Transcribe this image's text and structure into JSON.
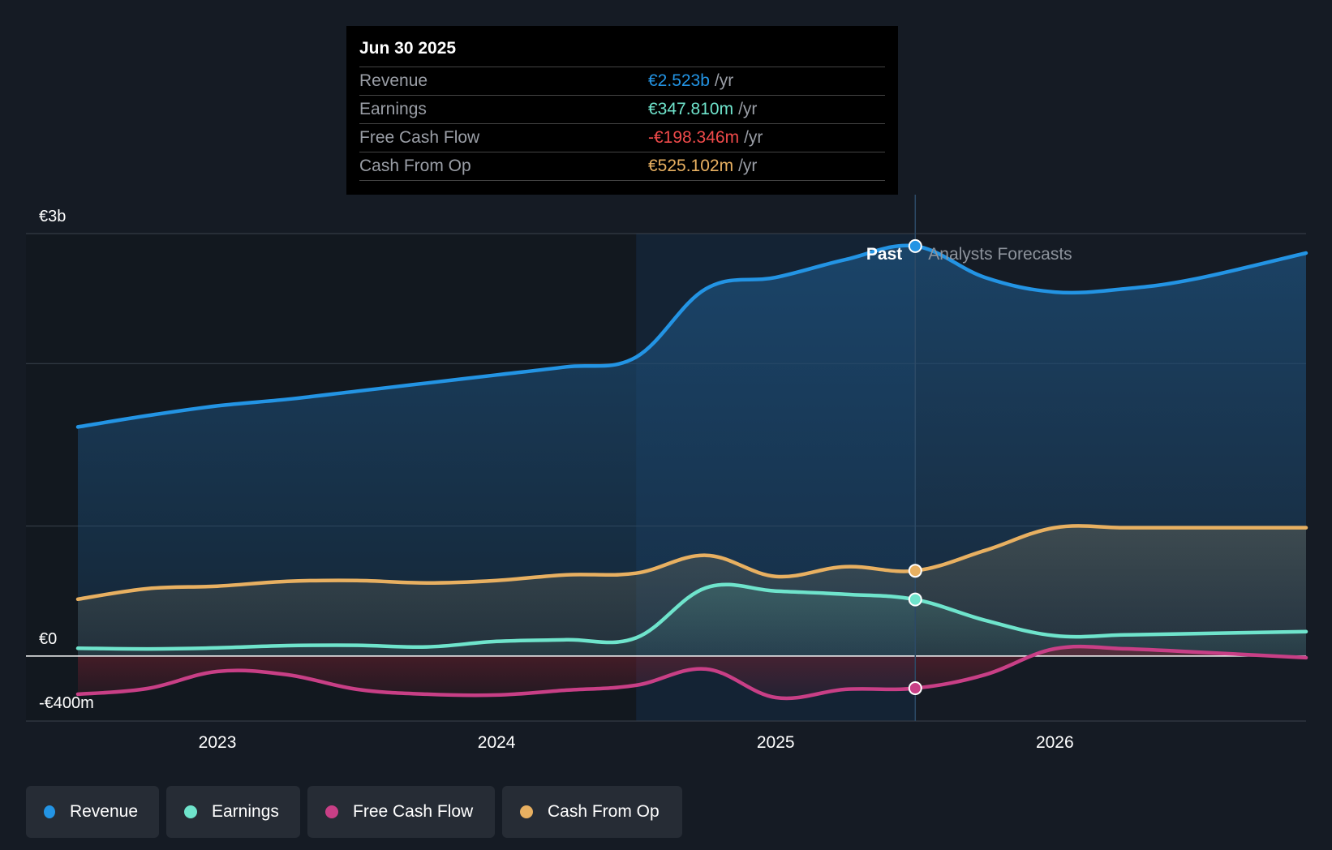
{
  "colors": {
    "revenue": "#2394e4",
    "earnings": "#6fe4cc",
    "free_cash_flow": "#c83f86",
    "cash_from_op": "#e8b061",
    "fcf_negative_text": "#ef4a4a",
    "background": "#151b24"
  },
  "tooltip": {
    "date": "Jun 30 2025",
    "rows": [
      {
        "label": "Revenue",
        "value": "€2.523b",
        "unit": "/yr"
      },
      {
        "label": "Earnings",
        "value": "€347.810m",
        "unit": "/yr"
      },
      {
        "label": "Free Cash Flow",
        "value": "-€198.346m",
        "unit": "/yr"
      },
      {
        "label": "Cash From Op",
        "value": "€525.102m",
        "unit": "/yr"
      }
    ]
  },
  "legend": [
    {
      "label": "Revenue",
      "color": "#2394e4"
    },
    {
      "label": "Earnings",
      "color": "#6fe4cc"
    },
    {
      "label": "Free Cash Flow",
      "color": "#c83f86"
    },
    {
      "label": "Cash From Op",
      "color": "#e8b061"
    }
  ],
  "chart_data": {
    "type": "line",
    "title": "",
    "xlabel": "",
    "ylabel": "",
    "unit": "€m",
    "x_range": [
      2022.5,
      2026.9
    ],
    "ylim": [
      -400,
      2600
    ],
    "y_tick_labels": [
      {
        "value": 2600,
        "label": "€3b"
      },
      {
        "value": 0,
        "label": "€0"
      },
      {
        "value": -400,
        "label": "-€400m"
      }
    ],
    "x_ticks": [
      {
        "value": 2023.0,
        "label": "2023"
      },
      {
        "value": 2024.0,
        "label": "2024"
      },
      {
        "value": 2025.0,
        "label": "2025"
      },
      {
        "value": 2026.0,
        "label": "2026"
      }
    ],
    "region_labels": {
      "past": "Past",
      "forecast": "Analysts Forecasts"
    },
    "past_divider_x": 2025.5,
    "highlight_start_x": 2024.5,
    "series": [
      {
        "name": "Revenue",
        "key": "revenue",
        "x": [
          2022.5,
          2022.75,
          2023.0,
          2023.25,
          2023.5,
          2023.75,
          2024.0,
          2024.25,
          2024.5,
          2024.75,
          2025.0,
          2025.25,
          2025.5,
          2025.75,
          2026.0,
          2026.25,
          2026.5,
          2026.9
        ],
        "values": [
          1410,
          1480,
          1540,
          1580,
          1630,
          1680,
          1730,
          1780,
          1840,
          2260,
          2330,
          2440,
          2523,
          2330,
          2240,
          2260,
          2320,
          2480
        ]
      },
      {
        "name": "Earnings",
        "key": "earnings",
        "x": [
          2022.5,
          2022.75,
          2023.0,
          2023.25,
          2023.5,
          2023.75,
          2024.0,
          2024.25,
          2024.5,
          2024.75,
          2025.0,
          2025.25,
          2025.5,
          2025.75,
          2026.0,
          2026.25,
          2026.5,
          2026.9
        ],
        "values": [
          48,
          44,
          50,
          64,
          66,
          56,
          90,
          100,
          112,
          420,
          400,
          380,
          348,
          220,
          125,
          130,
          138,
          150
        ]
      },
      {
        "name": "Free Cash Flow",
        "key": "free_cash_flow",
        "x": [
          2022.5,
          2022.75,
          2023.0,
          2023.25,
          2023.5,
          2023.75,
          2024.0,
          2024.25,
          2024.5,
          2024.75,
          2025.0,
          2025.25,
          2025.5,
          2025.75,
          2026.0,
          2026.25,
          2026.5,
          2026.9
        ],
        "values": [
          -235,
          -200,
          -95,
          -115,
          -205,
          -235,
          -240,
          -210,
          -180,
          -80,
          -255,
          -205,
          -198,
          -115,
          45,
          45,
          25,
          -10
        ]
      },
      {
        "name": "Cash From Op",
        "key": "cash_from_op",
        "x": [
          2022.5,
          2022.75,
          2023.0,
          2023.25,
          2023.5,
          2023.75,
          2024.0,
          2024.25,
          2024.5,
          2024.75,
          2025.0,
          2025.25,
          2025.5,
          2025.75,
          2026.0,
          2026.25,
          2026.5,
          2026.9
        ],
        "values": [
          350,
          415,
          430,
          460,
          465,
          450,
          465,
          500,
          510,
          620,
          490,
          550,
          525,
          650,
          790,
          790,
          790,
          790
        ]
      }
    ],
    "markers_at_x": 2025.5
  }
}
